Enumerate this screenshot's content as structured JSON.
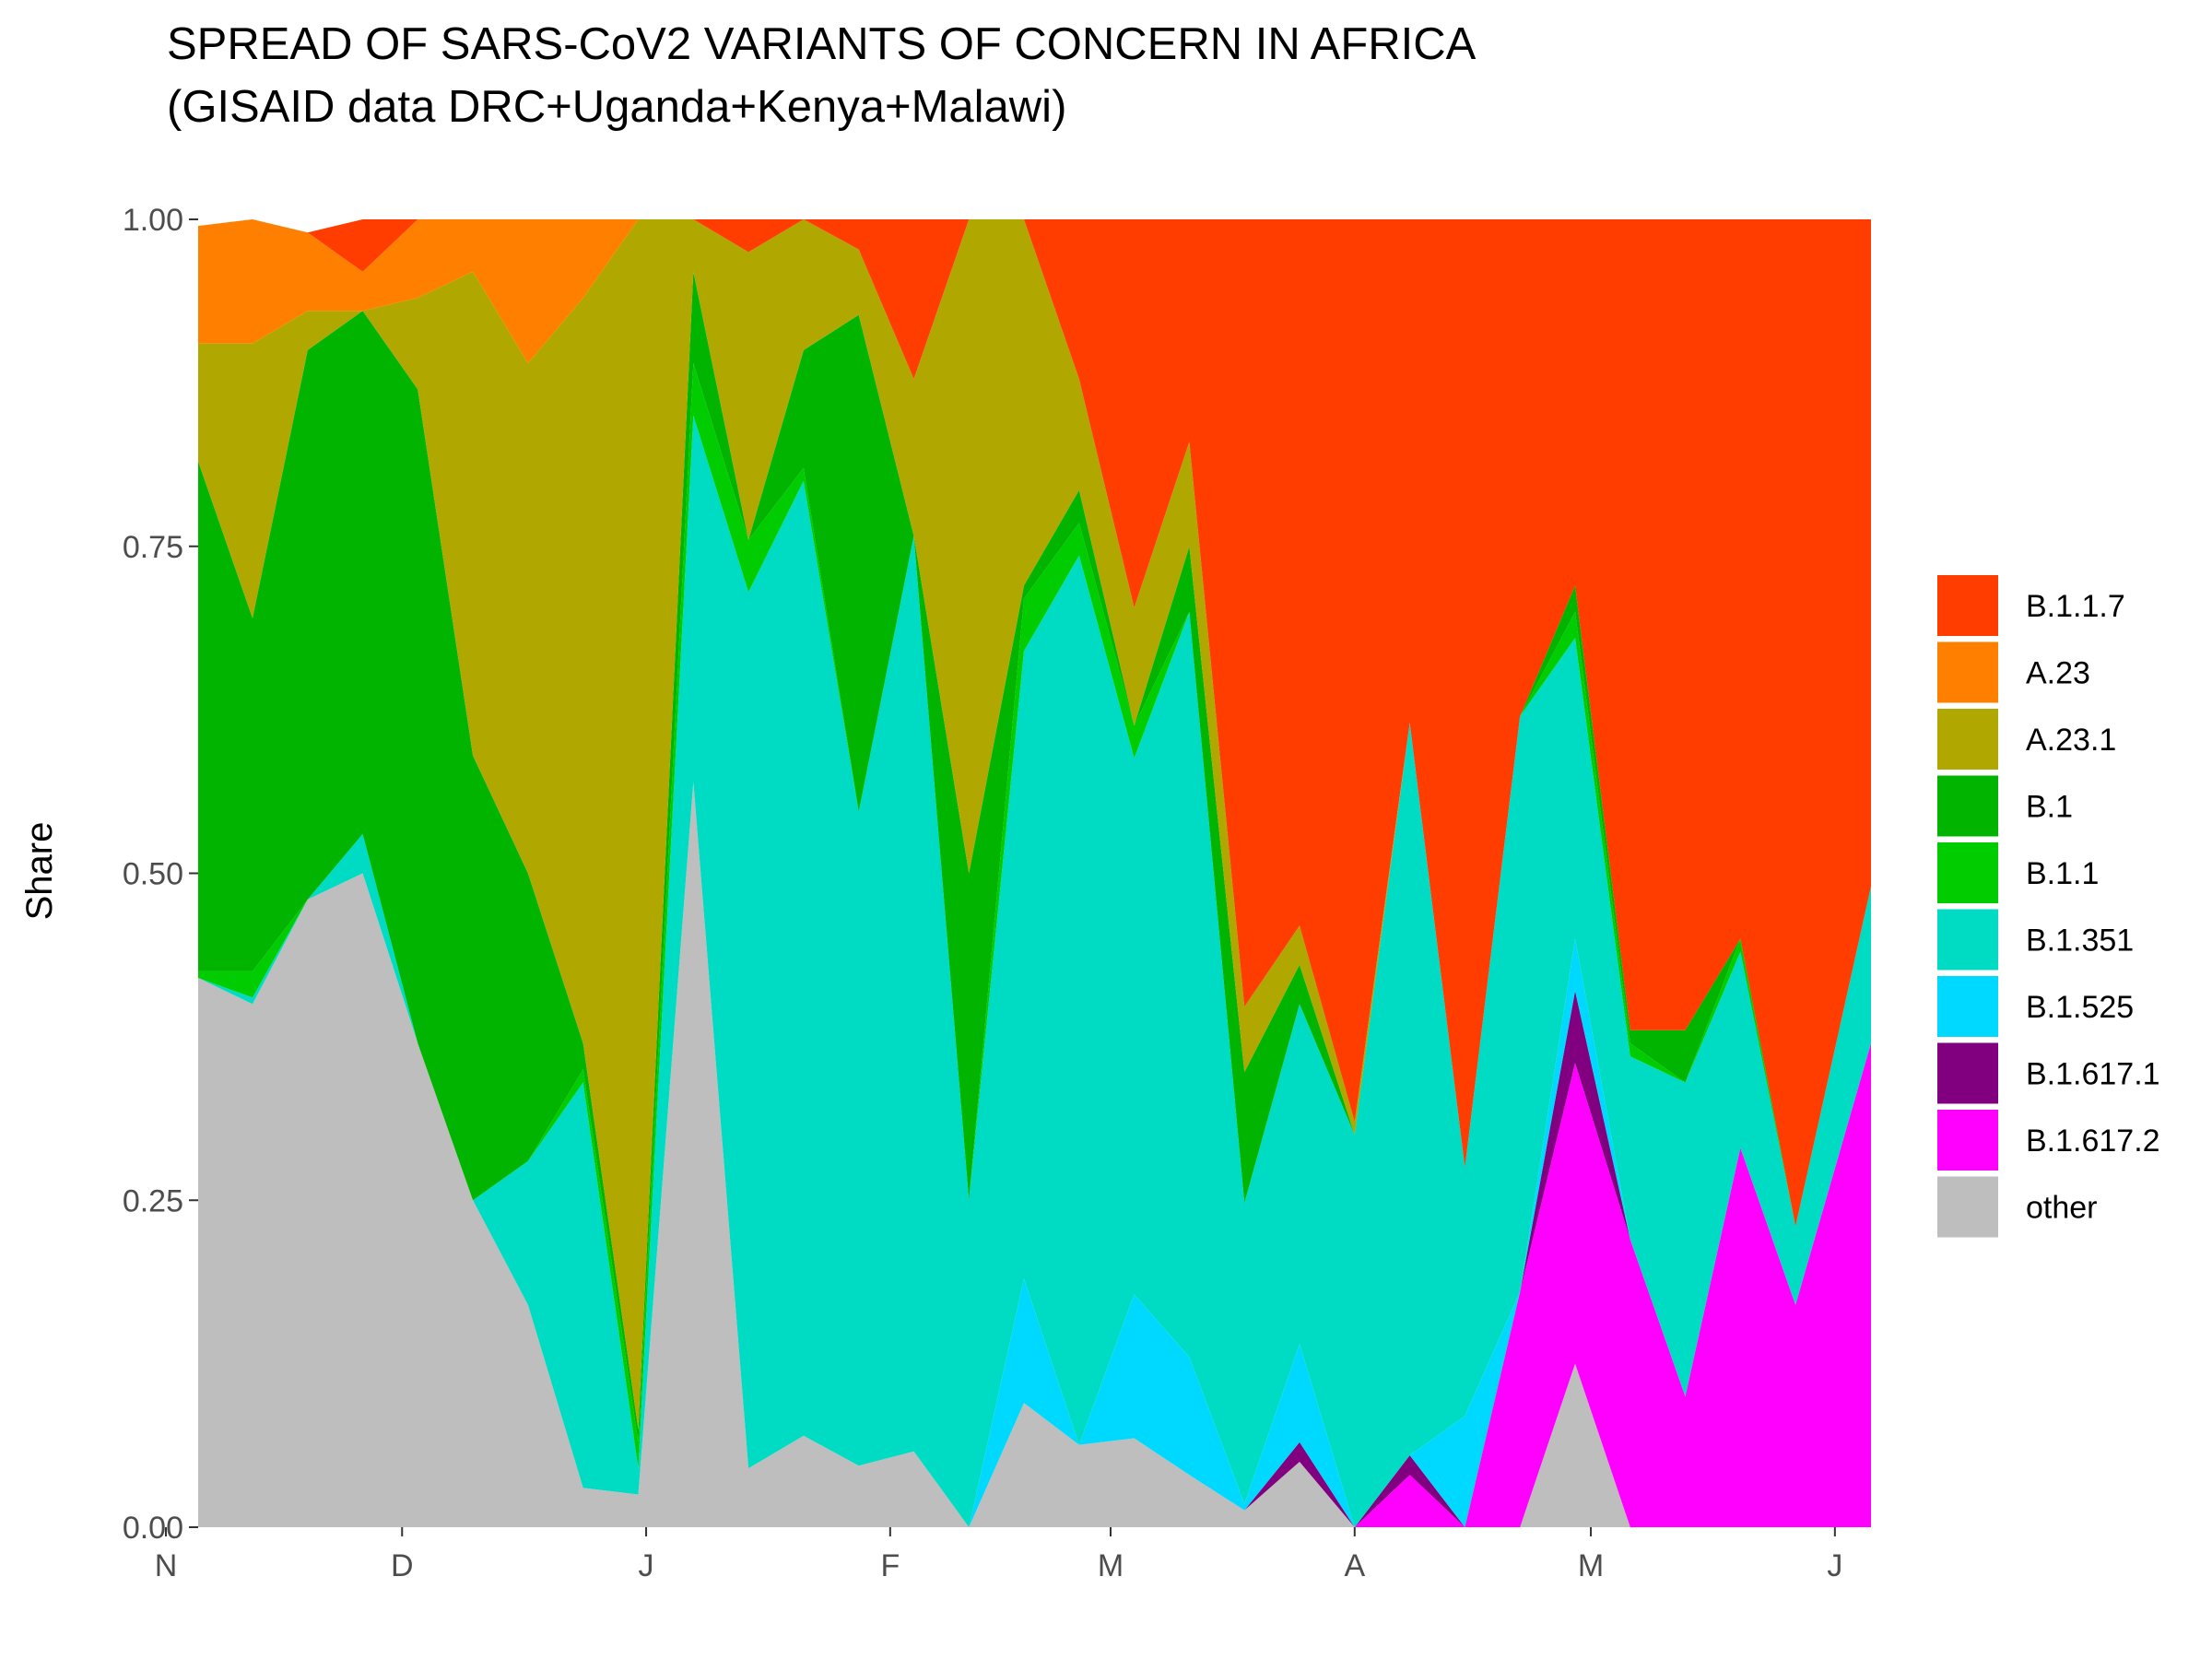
{
  "chart_data": {
    "type": "area",
    "stacked": true,
    "title": "SPREAD OF SARS-CoV2 VARIANTS OF CONCERN IN AFRICA",
    "subtitle": "(GISAID data DRC+Uganda+Kenya+Malawi)",
    "ylabel": "Share",
    "xlabel": "",
    "ylim": [
      0,
      1
    ],
    "y_ticks": [
      "0.00",
      "0.25",
      "0.50",
      "0.75",
      "1.00"
    ],
    "x_range": [
      "2020-11-01",
      "2021-06-05"
    ],
    "x_ticks": [
      {
        "label": "N",
        "date": "2020-11-01"
      },
      {
        "label": "D",
        "date": "2020-12-01"
      },
      {
        "label": "J",
        "date": "2021-01-01"
      },
      {
        "label": "F",
        "date": "2021-02-01"
      },
      {
        "label": "M",
        "date": "2021-03-01"
      },
      {
        "label": "A",
        "date": "2021-04-01"
      },
      {
        "label": "M",
        "date": "2021-05-01"
      },
      {
        "label": "J",
        "date": "2021-06-01"
      }
    ],
    "grid": false,
    "legend_position": "right",
    "x": [
      "2020-11-05",
      "2020-11-12",
      "2020-11-19",
      "2020-11-26",
      "2020-12-03",
      "2020-12-10",
      "2020-12-17",
      "2020-12-24",
      "2020-12-31",
      "2021-01-07",
      "2021-01-14",
      "2021-01-21",
      "2021-01-28",
      "2021-02-04",
      "2021-02-11",
      "2021-02-18",
      "2021-02-25",
      "2021-03-04",
      "2021-03-11",
      "2021-03-18",
      "2021-03-25",
      "2021-04-01",
      "2021-04-08",
      "2021-04-15",
      "2021-04-22",
      "2021-04-29",
      "2021-05-06",
      "2021-05-13",
      "2021-05-20",
      "2021-05-27",
      "2021-06-03"
    ],
    "series": [
      {
        "name": "other",
        "color": "#bebebe",
        "values": [
          0.42,
          0.4,
          0.48,
          0.5,
          0.37,
          0.25,
          0.17,
          0.03,
          0.025,
          0.57,
          0.045,
          0.07,
          0.047,
          0.058,
          0,
          0.095,
          0.063,
          0.068,
          0.04,
          0.013,
          0.05,
          0,
          0,
          0,
          0,
          0.125,
          0,
          0,
          0,
          0,
          0
        ]
      },
      {
        "name": "B.1.617.2",
        "color": "#ff00ff",
        "values": [
          0,
          0,
          0,
          0,
          0,
          0,
          0,
          0,
          0,
          0,
          0,
          0,
          0,
          0,
          0,
          0,
          0,
          0,
          0,
          0,
          0,
          0,
          0.04,
          0,
          0.18,
          0.23,
          0.22,
          0.1,
          0.29,
          0.17,
          0.37
        ]
      },
      {
        "name": "B.1.617.1",
        "color": "#800080",
        "values": [
          0,
          0,
          0,
          0,
          0,
          0,
          0,
          0,
          0,
          0,
          0,
          0,
          0,
          0,
          0,
          0,
          0,
          0,
          0,
          0,
          0.015,
          0,
          0.015,
          0,
          0,
          0.055,
          0,
          0,
          0,
          0,
          0
        ]
      },
      {
        "name": "B.1.525",
        "color": "#00d9ff",
        "values": [
          0,
          0,
          0,
          0,
          0,
          0,
          0,
          0,
          0,
          0,
          0,
          0,
          0,
          0,
          0,
          0.095,
          0,
          0.11,
          0.09,
          0.005,
          0.075,
          0,
          0,
          0.085,
          0,
          0.04,
          0,
          0,
          0,
          0,
          0
        ]
      },
      {
        "name": "B.1.351",
        "color": "#00dcc4",
        "values": [
          0,
          0.005,
          0,
          0.03,
          0,
          0,
          0.11,
          0.31,
          0.02,
          0.28,
          0.67,
          0.73,
          0.5,
          0.7,
          0.25,
          0.48,
          0.68,
          0.41,
          0.57,
          0.23,
          0.26,
          0.3,
          0.56,
          0.19,
          0.44,
          0.23,
          0.14,
          0.24,
          0.15,
          0.06,
          0.12
        ]
      },
      {
        "name": "B.1.1",
        "color": "#00cc00",
        "values": [
          0.005,
          0.02,
          0,
          0,
          0,
          0,
          0,
          0.01,
          0.02,
          0.04,
          0.04,
          0.01,
          0,
          0,
          0,
          0.04,
          0.025,
          0.025,
          0,
          0,
          0,
          0,
          0,
          0,
          0,
          0.02,
          0.01,
          0,
          0.01,
          0,
          0
        ]
      },
      {
        "name": "B.1",
        "color": "#00b400",
        "values": [
          0.39,
          0.27,
          0.42,
          0.4,
          0.5,
          0.34,
          0.22,
          0.02,
          0.01,
          0.07,
          0,
          0.09,
          0.38,
          0,
          0.25,
          0.01,
          0.025,
          0,
          0.05,
          0.1,
          0.03,
          0,
          0,
          0,
          0,
          0.02,
          0.01,
          0.04,
          0,
          0,
          0
        ]
      },
      {
        "name": "A.23.1",
        "color": "#b0a800",
        "values": [
          0.09,
          0.21,
          0.03,
          0,
          0.07,
          0.37,
          0.39,
          0.57,
          0.925,
          0.04,
          0.22,
          0.1,
          0.05,
          0.12,
          0.5,
          0.33,
          0.085,
          0.09,
          0.08,
          0.05,
          0.03,
          0.01,
          0,
          0,
          0,
          0,
          0,
          0,
          0,
          0,
          0
        ]
      },
      {
        "name": "A.23",
        "color": "#ff8000",
        "values": [
          0.09,
          0.1,
          0.06,
          0.03,
          0.06,
          0.04,
          0.11,
          0.06,
          0,
          0,
          0,
          0,
          0,
          0,
          0,
          0,
          0,
          0,
          0,
          0,
          0,
          0,
          0,
          0,
          0,
          0,
          0,
          0,
          0,
          0,
          0
        ]
      },
      {
        "name": "B.1.1.7",
        "color": "#ff3d00",
        "values": [
          0,
          0,
          0,
          0.04,
          0,
          0,
          0,
          0,
          0,
          0,
          0.025,
          0,
          0.023,
          0.122,
          0,
          0.045,
          0.122,
          0.297,
          0.25,
          0.602,
          0.565,
          0.69,
          0.385,
          0.725,
          0.38,
          0.29,
          0.62,
          0.62,
          0.55,
          0.77,
          0.51
        ]
      }
    ],
    "legend_order": [
      "B.1.1.7",
      "A.23",
      "A.23.1",
      "B.1",
      "B.1.1",
      "B.1.351",
      "B.1.525",
      "B.1.617.1",
      "B.1.617.2",
      "other"
    ]
  }
}
